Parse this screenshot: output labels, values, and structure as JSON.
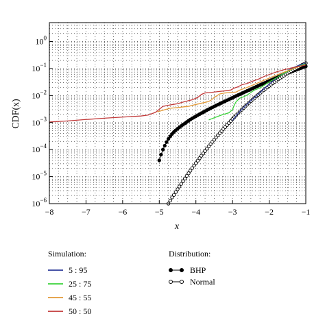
{
  "chart_data": {
    "type": "line",
    "xlabel": "x",
    "ylabel": "CDF(x)",
    "xlim": [
      -8,
      -1
    ],
    "ylim": [
      1e-06,
      5
    ],
    "yscale": "log",
    "grid": true,
    "x_ticks": [
      "−8",
      "−7",
      "−6",
      "−5",
      "−4",
      "−3",
      "−2",
      "−1"
    ],
    "x_tick_values": [
      -8,
      -7,
      -6,
      -5,
      -4,
      -3,
      -2,
      -1
    ],
    "y_ticks": [
      {
        "base": "10",
        "exp": "−6"
      },
      {
        "base": "10",
        "exp": "−5"
      },
      {
        "base": "10",
        "exp": "−4"
      },
      {
        "base": "10",
        "exp": "−3"
      },
      {
        "base": "10",
        "exp": "−2"
      },
      {
        "base": "10",
        "exp": "−1"
      },
      {
        "base": "10",
        "exp": "0"
      }
    ],
    "y_tick_values": [
      1e-06,
      1e-05,
      0.0001,
      0.001,
      0.01,
      0.1,
      1
    ],
    "simulation_legend_title": "Simulation:",
    "distribution_legend_title": "Distribution:",
    "simulation_series": [
      {
        "name": "5 : 95",
        "color": "#2b3a9a",
        "points": [
          [
            -3.0,
            0.0012
          ],
          [
            -2.9,
            0.0018
          ],
          [
            -2.8,
            0.0026
          ],
          [
            -2.7,
            0.0035
          ],
          [
            -2.6,
            0.0048
          ],
          [
            -2.5,
            0.0065
          ],
          [
            -2.4,
            0.0085
          ],
          [
            -2.3,
            0.011
          ],
          [
            -2.2,
            0.015
          ],
          [
            -2.1,
            0.02
          ],
          [
            -2.0,
            0.026
          ],
          [
            -1.9,
            0.034
          ],
          [
            -1.8,
            0.044
          ],
          [
            -1.7,
            0.055
          ],
          [
            -1.6,
            0.068
          ],
          [
            -1.5,
            0.082
          ],
          [
            -1.4,
            0.098
          ],
          [
            -1.3,
            0.114
          ],
          [
            -1.2,
            0.13
          ],
          [
            -1.1,
            0.146
          ],
          [
            -1.0,
            0.16
          ]
        ]
      },
      {
        "name": "25 : 75",
        "color": "#3ad33a",
        "points": [
          [
            -3.65,
            0.00125
          ],
          [
            -3.45,
            0.0016
          ],
          [
            -3.3,
            0.0019
          ],
          [
            -3.2,
            0.0021
          ],
          [
            -3.1,
            0.0023
          ],
          [
            -3.0,
            0.003
          ],
          [
            -2.95,
            0.0045
          ],
          [
            -2.9,
            0.006
          ],
          [
            -2.8,
            0.008
          ],
          [
            -2.7,
            0.009
          ],
          [
            -2.6,
            0.0105
          ],
          [
            -2.5,
            0.013
          ],
          [
            -2.4,
            0.016
          ],
          [
            -2.3,
            0.018
          ],
          [
            -2.2,
            0.021
          ],
          [
            -2.1,
            0.026
          ],
          [
            -2.0,
            0.032
          ],
          [
            -1.9,
            0.038
          ],
          [
            -1.8,
            0.045
          ],
          [
            -1.7,
            0.055
          ],
          [
            -1.6,
            0.066
          ],
          [
            -1.5,
            0.078
          ],
          [
            -1.4,
            0.09
          ],
          [
            -1.3,
            0.105
          ],
          [
            -1.2,
            0.12
          ],
          [
            -1.1,
            0.135
          ],
          [
            -1.0,
            0.15
          ]
        ]
      },
      {
        "name": "45 : 55",
        "color": "#e39a38",
        "points": [
          [
            -5.05,
            0.0025
          ],
          [
            -4.85,
            0.003
          ],
          [
            -4.7,
            0.0034
          ],
          [
            -4.5,
            0.0036
          ],
          [
            -4.35,
            0.0038
          ],
          [
            -4.2,
            0.004
          ],
          [
            -4.05,
            0.0045
          ],
          [
            -3.85,
            0.0052
          ],
          [
            -3.7,
            0.0058
          ],
          [
            -3.6,
            0.0065
          ],
          [
            -3.5,
            0.0085
          ],
          [
            -3.35,
            0.0115
          ],
          [
            -3.2,
            0.0125
          ],
          [
            -3.05,
            0.013
          ],
          [
            -2.9,
            0.0135
          ],
          [
            -2.8,
            0.016
          ],
          [
            -2.6,
            0.02
          ],
          [
            -2.4,
            0.026
          ],
          [
            -2.2,
            0.034
          ],
          [
            -2.0,
            0.044
          ],
          [
            -1.8,
            0.057
          ],
          [
            -1.6,
            0.073
          ],
          [
            -1.4,
            0.092
          ],
          [
            -1.2,
            0.115
          ],
          [
            -1.0,
            0.14
          ]
        ]
      },
      {
        "name": "50 : 50",
        "color": "#c23a3a",
        "points": [
          [
            -8.0,
            0.00105
          ],
          [
            -7.5,
            0.00115
          ],
          [
            -7.0,
            0.0013
          ],
          [
            -6.5,
            0.00145
          ],
          [
            -6.0,
            0.0016
          ],
          [
            -5.5,
            0.00175
          ],
          [
            -5.3,
            0.0019
          ],
          [
            -5.1,
            0.0024
          ],
          [
            -4.9,
            0.004
          ],
          [
            -4.7,
            0.0045
          ],
          [
            -4.5,
            0.005
          ],
          [
            -4.3,
            0.006
          ],
          [
            -4.1,
            0.007
          ],
          [
            -3.95,
            0.0085
          ],
          [
            -3.85,
            0.011
          ],
          [
            -3.75,
            0.0125
          ],
          [
            -3.6,
            0.013
          ],
          [
            -3.4,
            0.014
          ],
          [
            -3.2,
            0.015
          ],
          [
            -3.05,
            0.016
          ],
          [
            -2.95,
            0.019
          ],
          [
            -2.85,
            0.021
          ],
          [
            -2.75,
            0.025
          ],
          [
            -2.6,
            0.028
          ],
          [
            -2.45,
            0.034
          ],
          [
            -2.3,
            0.04
          ],
          [
            -2.15,
            0.05
          ],
          [
            -2.0,
            0.06
          ],
          [
            -1.8,
            0.075
          ],
          [
            -1.6,
            0.09
          ],
          [
            -1.4,
            0.105
          ],
          [
            -1.2,
            0.12
          ],
          [
            -1.0,
            0.135
          ]
        ]
      }
    ],
    "distribution_series": [
      {
        "name": "BHP",
        "marker": "filled-circle",
        "color": "#000000",
        "points": [
          [
            -5.0,
            4e-05
          ],
          [
            -4.95,
            6.5e-05
          ],
          [
            -4.9,
            0.0001
          ],
          [
            -4.85,
            0.00014
          ],
          [
            -4.8,
            0.00019
          ],
          [
            -4.75,
            0.00025
          ],
          [
            -4.7,
            0.00031
          ],
          [
            -4.65,
            0.00038
          ],
          [
            -4.6,
            0.00045
          ],
          [
            -4.55,
            0.00052
          ],
          [
            -4.5,
            0.00059
          ],
          [
            -4.45,
            0.00067
          ],
          [
            -4.4,
            0.00075
          ],
          [
            -4.35,
            0.00084
          ],
          [
            -4.3,
            0.00094
          ],
          [
            -4.25,
            0.00105
          ],
          [
            -4.2,
            0.00117
          ],
          [
            -4.15,
            0.0013
          ],
          [
            -4.1,
            0.00143
          ],
          [
            -4.05,
            0.00157
          ],
          [
            -4.0,
            0.00172
          ],
          [
            -3.95,
            0.00188
          ],
          [
            -3.9,
            0.00205
          ],
          [
            -3.85,
            0.00223
          ],
          [
            -3.8,
            0.00243
          ],
          [
            -3.75,
            0.00265
          ],
          [
            -3.7,
            0.00288
          ],
          [
            -3.65,
            0.00312
          ],
          [
            -3.6,
            0.00338
          ],
          [
            -3.55,
            0.00365
          ],
          [
            -3.5,
            0.00395
          ],
          [
            -3.45,
            0.00427
          ],
          [
            -3.4,
            0.0046
          ],
          [
            -3.35,
            0.00497
          ],
          [
            -3.3,
            0.00535
          ],
          [
            -3.25,
            0.00577
          ],
          [
            -3.2,
            0.0062
          ],
          [
            -3.15,
            0.00668
          ],
          [
            -3.1,
            0.0072
          ],
          [
            -3.05,
            0.00775
          ],
          [
            -3.0,
            0.00835
          ],
          [
            -2.95,
            0.009
          ],
          [
            -2.9,
            0.0097
          ],
          [
            -2.85,
            0.0104
          ],
          [
            -2.8,
            0.0112
          ],
          [
            -2.75,
            0.012
          ],
          [
            -2.7,
            0.0129
          ],
          [
            -2.65,
            0.0139
          ],
          [
            -2.6,
            0.0149
          ],
          [
            -2.55,
            0.016
          ],
          [
            -2.5,
            0.0172
          ],
          [
            -2.45,
            0.0185
          ],
          [
            -2.4,
            0.0199
          ],
          [
            -2.35,
            0.0214
          ],
          [
            -2.3,
            0.0229
          ],
          [
            -2.25,
            0.0246
          ],
          [
            -2.2,
            0.0264
          ],
          [
            -2.15,
            0.0283
          ],
          [
            -2.1,
            0.0303
          ],
          [
            -2.05,
            0.0325
          ],
          [
            -2.0,
            0.0348
          ],
          [
            -1.95,
            0.0372
          ],
          [
            -1.9,
            0.0398
          ],
          [
            -1.85,
            0.0426
          ],
          [
            -1.8,
            0.0455
          ],
          [
            -1.75,
            0.0486
          ],
          [
            -1.7,
            0.0519
          ],
          [
            -1.65,
            0.0554
          ],
          [
            -1.6,
            0.059
          ],
          [
            -1.55,
            0.0629
          ],
          [
            -1.5,
            0.067
          ],
          [
            -1.45,
            0.0713
          ],
          [
            -1.4,
            0.0758
          ],
          [
            -1.35,
            0.0806
          ],
          [
            -1.3,
            0.0856
          ],
          [
            -1.25,
            0.0909
          ],
          [
            -1.2,
            0.0964
          ],
          [
            -1.15,
            0.102
          ],
          [
            -1.1,
            0.108
          ],
          [
            -1.05,
            0.114
          ],
          [
            -1.0,
            0.121
          ]
        ]
      },
      {
        "name": "Normal",
        "marker": "open-circle",
        "color": "#000000",
        "points": [
          [
            -4.9,
            4.8e-07
          ],
          [
            -4.85,
            6.2e-07
          ],
          [
            -4.8,
            7.9e-07
          ],
          [
            -4.75,
            1e-06
          ],
          [
            -4.7,
            1.3e-06
          ],
          [
            -4.65,
            1.7e-06
          ],
          [
            -4.6,
            2.1e-06
          ],
          [
            -4.55,
            2.7e-06
          ],
          [
            -4.5,
            3.4e-06
          ],
          [
            -4.45,
            4.3e-06
          ],
          [
            -4.4,
            5.4e-06
          ],
          [
            -4.35,
            6.8e-06
          ],
          [
            -4.3,
            8.5e-06
          ],
          [
            -4.25,
            1.07e-05
          ],
          [
            -4.2,
            1.33e-05
          ],
          [
            -4.15,
            1.66e-05
          ],
          [
            -4.1,
            2.07e-05
          ],
          [
            -4.05,
            2.56e-05
          ],
          [
            -4.0,
            3.17e-05
          ],
          [
            -3.95,
            3.9e-05
          ],
          [
            -3.9,
            4.81e-05
          ],
          [
            -3.85,
            5.91e-05
          ],
          [
            -3.8,
            7.23e-05
          ],
          [
            -3.75,
            8.84e-05
          ],
          [
            -3.7,
            0.000108
          ],
          [
            -3.65,
            0.000131
          ],
          [
            -3.6,
            0.000159
          ],
          [
            -3.55,
            0.000193
          ],
          [
            -3.5,
            0.000233
          ],
          [
            -3.45,
            0.00028
          ],
          [
            -3.4,
            0.000337
          ],
          [
            -3.35,
            0.000404
          ],
          [
            -3.3,
            0.000483
          ],
          [
            -3.25,
            0.000577
          ],
          [
            -3.2,
            0.000687
          ],
          [
            -3.15,
            0.000816
          ],
          [
            -3.1,
            0.000968
          ],
          [
            -3.05,
            0.00114
          ],
          [
            -3.0,
            0.00135
          ],
          [
            -2.95,
            0.00159
          ],
          [
            -2.9,
            0.00187
          ],
          [
            -2.85,
            0.00219
          ],
          [
            -2.8,
            0.00256
          ],
          [
            -2.75,
            0.00298
          ],
          [
            -2.7,
            0.00347
          ],
          [
            -2.65,
            0.00402
          ],
          [
            -2.6,
            0.00466
          ],
          [
            -2.55,
            0.00539
          ],
          [
            -2.5,
            0.00621
          ],
          [
            -2.45,
            0.00714
          ],
          [
            -2.4,
            0.0082
          ],
          [
            -2.35,
            0.00939
          ],
          [
            -2.3,
            0.0107
          ],
          [
            -2.25,
            0.0122
          ],
          [
            -2.2,
            0.0139
          ],
          [
            -2.15,
            0.0158
          ],
          [
            -2.1,
            0.0179
          ],
          [
            -2.05,
            0.0202
          ],
          [
            -2.0,
            0.0228
          ],
          [
            -1.95,
            0.0256
          ],
          [
            -1.9,
            0.0287
          ],
          [
            -1.85,
            0.0322
          ],
          [
            -1.8,
            0.0359
          ],
          [
            -1.75,
            0.0401
          ],
          [
            -1.7,
            0.0446
          ],
          [
            -1.65,
            0.0495
          ],
          [
            -1.6,
            0.0548
          ],
          [
            -1.55,
            0.0606
          ],
          [
            -1.5,
            0.0668
          ],
          [
            -1.45,
            0.0735
          ],
          [
            -1.4,
            0.0808
          ],
          [
            -1.35,
            0.0885
          ],
          [
            -1.3,
            0.0968
          ],
          [
            -1.25,
            0.106
          ],
          [
            -1.2,
            0.115
          ],
          [
            -1.15,
            0.125
          ],
          [
            -1.1,
            0.136
          ],
          [
            -1.05,
            0.147
          ],
          [
            -1.0,
            0.159
          ]
        ]
      }
    ]
  }
}
